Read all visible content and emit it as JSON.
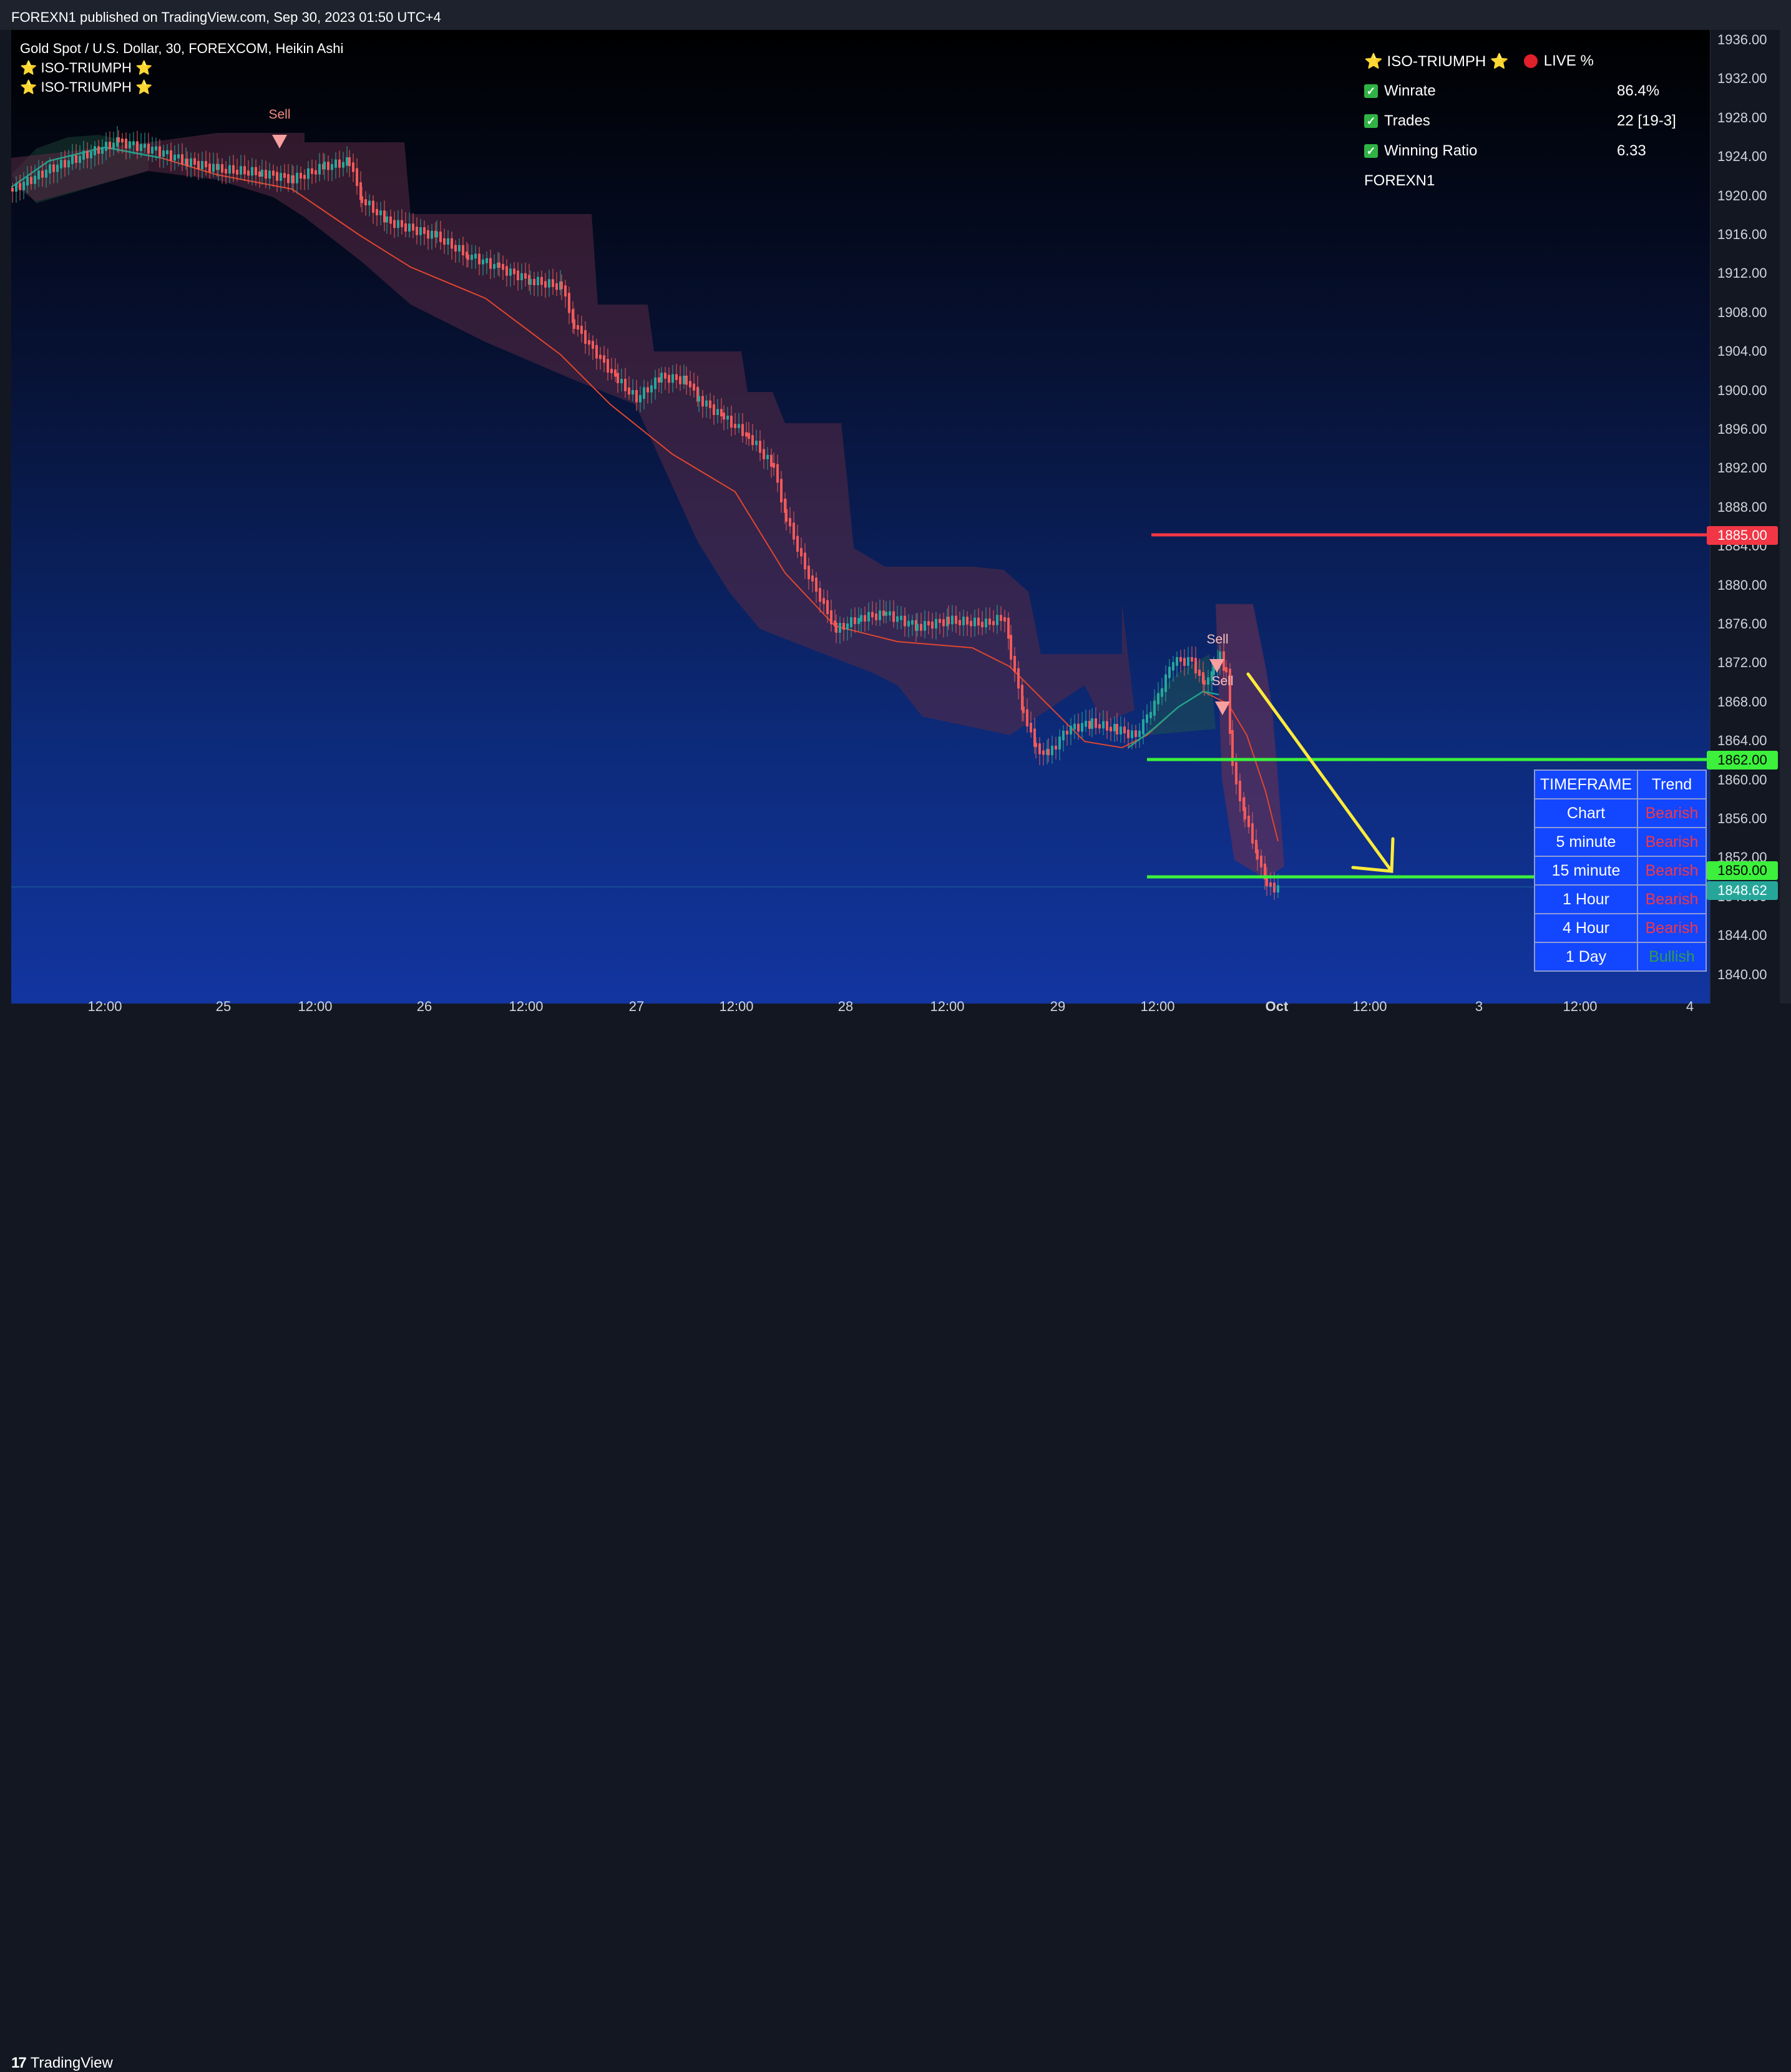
{
  "publisher": {
    "text": "FOREXN1 published on TradingView.com, Sep 30, 2023 01:50 UTC+4"
  },
  "legend": {
    "symbol": "Gold Spot / U.S. Dollar, 30, FOREXCOM, Heikin Ashi",
    "indicators": [
      "⭐ ISO-TRIUMPH ⭐",
      "⭐ ISO-TRIUMPH ⭐"
    ]
  },
  "stats": {
    "title": "⭐ ISO-TRIUMPH ⭐",
    "live_label": "LIVE %",
    "rows": [
      {
        "label": "Winrate",
        "value": "86.4%"
      },
      {
        "label": "Trades",
        "value": "22 [19-3]"
      },
      {
        "label": "Winning Ratio",
        "value": "6.33"
      }
    ],
    "footer": "FOREXN1"
  },
  "signals": {
    "sell_label": "Sell"
  },
  "price_axis": {
    "ticks": [
      "1936.00",
      "1932.00",
      "1928.00",
      "1924.00",
      "1920.00",
      "1916.00",
      "1912.00",
      "1908.00",
      "1904.00",
      "1900.00",
      "1896.00",
      "1892.00",
      "1888.00",
      "1884.00",
      "1880.00",
      "1876.00",
      "1872.00",
      "1868.00",
      "1864.00",
      "1860.00",
      "1856.00",
      "1852.00",
      "1848.00",
      "1844.00",
      "1840.00"
    ],
    "labels": {
      "resistance": "1885.00",
      "support_1": "1862.00",
      "support_2": "1850.00",
      "current": "1848.62"
    }
  },
  "time_axis": {
    "labels": [
      "12:00",
      "25",
      "12:00",
      "26",
      "12:00",
      "27",
      "12:00",
      "28",
      "12:00",
      "29",
      "12:00",
      "Oct",
      "12:00",
      "3",
      "12:00",
      "4"
    ]
  },
  "timeframe_table": {
    "header": [
      "TIMEFRAME",
      "Trend"
    ],
    "rows": [
      {
        "tf": "Chart",
        "trend": "Bearish"
      },
      {
        "tf": "5 minute",
        "trend": "Bearish"
      },
      {
        "tf": "15 minute",
        "trend": "Bearish"
      },
      {
        "tf": "1 Hour",
        "trend": "Bearish"
      },
      {
        "tf": "4 Hour",
        "trend": "Bearish"
      },
      {
        "tf": "1 Day",
        "trend": "Bullish"
      }
    ]
  },
  "colors": {
    "bull": "#26a69a",
    "bear": "#f05a5a",
    "resistance_line": "#f23645",
    "support_line": "#3cf03c",
    "arrow": "#ffeb3b"
  },
  "brand": {
    "name": "TradingView"
  }
}
